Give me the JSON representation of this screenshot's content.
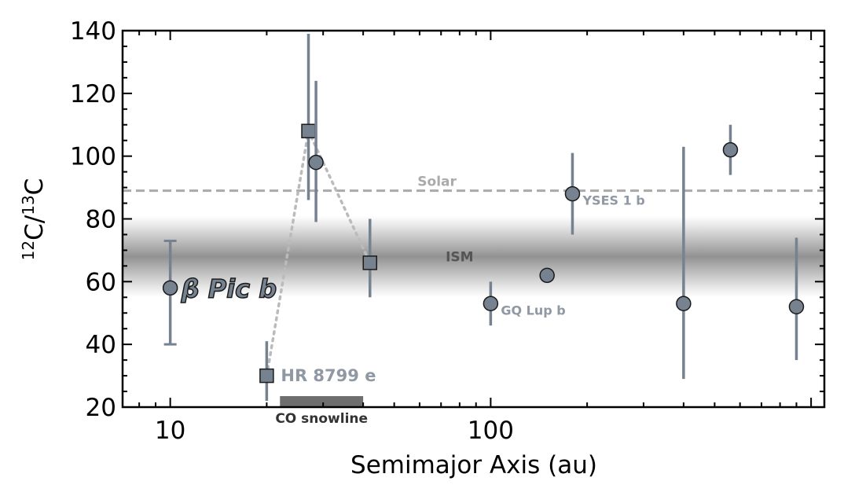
{
  "chart_data": {
    "type": "scatter",
    "xlabel": "Semimajor Axis (au)",
    "ylabel_parts": {
      "pre": "12",
      "mid": "C/",
      "sup2": "13",
      "post": "C"
    },
    "xscale": "log",
    "xlim": [
      7.1,
      1100
    ],
    "ylim": [
      20,
      140
    ],
    "x_tick_labels": [
      {
        "value": 10,
        "label": "10"
      },
      {
        "value": 100,
        "label": "100"
      }
    ],
    "y_ticks": [
      20,
      40,
      60,
      80,
      100,
      120,
      140
    ],
    "y_tick_labels": [
      "20",
      "40",
      "60",
      "80",
      "100",
      "120",
      "140"
    ],
    "marker_color": "#76828f",
    "errorbar_color": "#76828f",
    "reference_lines": [
      {
        "label": "Solar",
        "y": 89,
        "style": "dashed",
        "color": "#aaaaaa"
      }
    ],
    "bands": [
      {
        "label": "ISM",
        "y_center": 68,
        "y_half_width": 13,
        "color": "#8c8c8c"
      }
    ],
    "snowline": {
      "label": "CO snowline",
      "x_range": [
        22,
        40
      ],
      "color": "#6e6e6e"
    },
    "connector": {
      "style": "dotted",
      "color": "#bbbbbb",
      "x": [
        20,
        27,
        42
      ],
      "y": [
        30,
        108,
        66
      ]
    },
    "points": [
      {
        "label": "β Pic b",
        "marker": "circle",
        "x": 10,
        "y": 58,
        "yerr": [
          18,
          15
        ],
        "caps": true,
        "highlight": true
      },
      {
        "label": "HR 8799 e",
        "marker": "square",
        "x": 20,
        "y": 30,
        "yerr": [
          8,
          11
        ]
      },
      {
        "label": "",
        "marker": "square",
        "x": 27,
        "y": 108,
        "yerr": [
          22,
          31
        ]
      },
      {
        "label": "",
        "marker": "circle",
        "x": 28.5,
        "y": 98,
        "yerr": [
          19,
          26
        ]
      },
      {
        "label": "",
        "marker": "square",
        "x": 42,
        "y": 66,
        "yerr": [
          11,
          14
        ]
      },
      {
        "label": "GQ Lup b",
        "marker": "circle",
        "x": 100,
        "y": 53,
        "yerr": [
          7,
          7
        ]
      },
      {
        "label": "",
        "marker": "circle",
        "x": 150,
        "y": 62,
        "yerr": [
          0,
          0
        ]
      },
      {
        "label": "YSES 1 b",
        "marker": "circle",
        "x": 180,
        "y": 88,
        "yerr": [
          13,
          13
        ]
      },
      {
        "label": "",
        "marker": "circle",
        "x": 400,
        "y": 53,
        "yerr": [
          24,
          50
        ]
      },
      {
        "label": "",
        "marker": "circle",
        "x": 560,
        "y": 102,
        "yerr": [
          8,
          8
        ]
      },
      {
        "label": "",
        "marker": "circle",
        "x": 900,
        "y": 52,
        "yerr": [
          17,
          22
        ]
      }
    ]
  }
}
